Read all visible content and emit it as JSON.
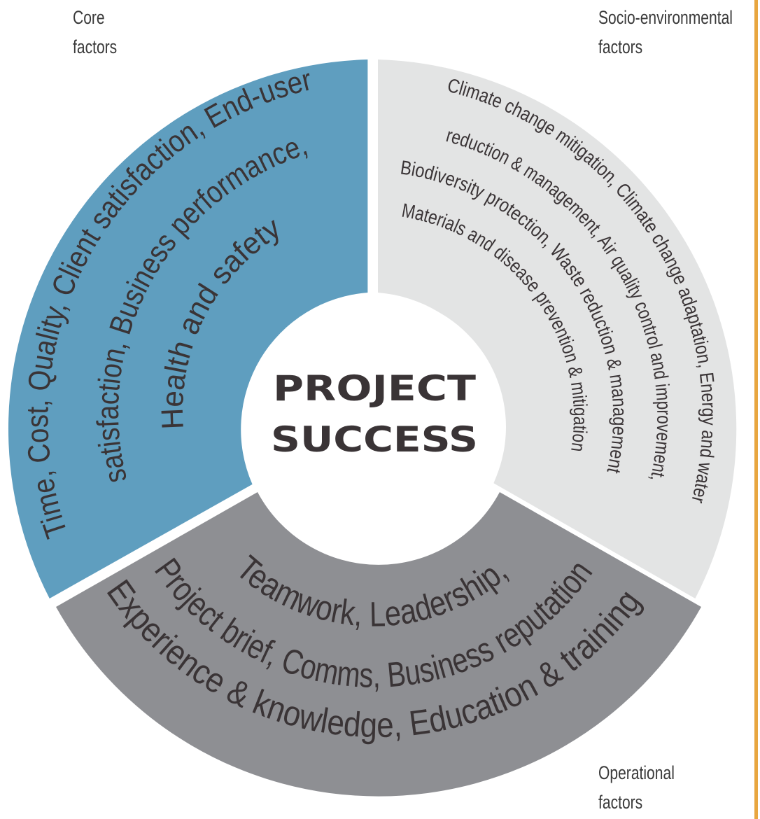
{
  "labels": {
    "core": [
      "Core",
      "factors"
    ],
    "socio": [
      "Socio-environmental",
      "factors"
    ],
    "operational": [
      "Operational",
      "factors"
    ]
  },
  "center": [
    "PROJECT",
    "SUCCESS"
  ],
  "core_text": [
    "Time, Cost, Quality, Client satisfaction, End-user",
    "satisfaction, Business performance,",
    "Health and safety"
  ],
  "socio_text": [
    "Climate change mitigation, Climate change adaptation, Energy and water",
    "reduction & management, Air quality control and improvement,",
    "Biodiversity protection, Waste reduction & management,",
    "Materials and disease prevention & mitigation"
  ],
  "operational_text": [
    "Teamwork, Leadership,",
    "Project brief, Comms, Business reputation",
    "Experience & knowledge, Education & training"
  ],
  "colors": {
    "core": "#5f9ebf",
    "socio": "#e3e4e4",
    "operational": "#8e8f93",
    "text": "#3a3436",
    "accent_line": "#e8a640"
  }
}
